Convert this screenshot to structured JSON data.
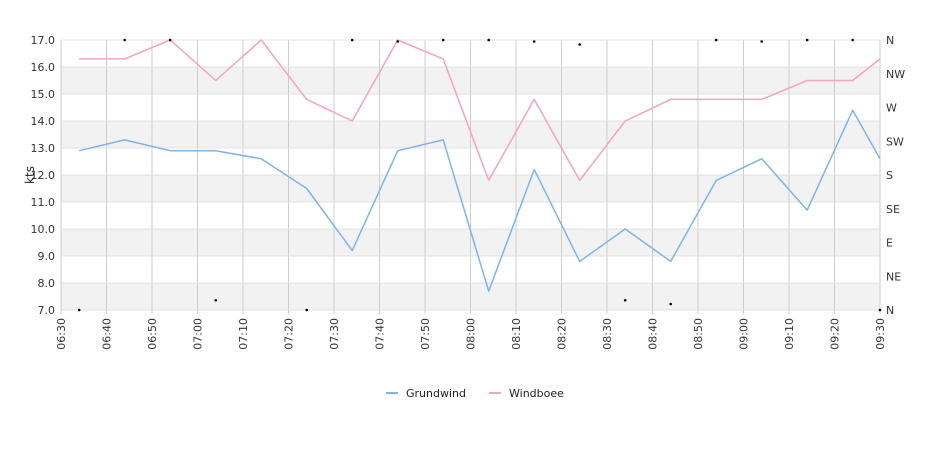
{
  "chart_data": {
    "type": "line",
    "ylabel": "kts",
    "ylim": [
      7.0,
      17.0
    ],
    "y_ticks": [
      "7.0",
      "8.0",
      "9.0",
      "10.0",
      "11.0",
      "12.0",
      "13.0",
      "14.0",
      "15.0",
      "16.0",
      "17.0"
    ],
    "x_ticks": [
      "06:30",
      "06:40",
      "06:50",
      "07:00",
      "07:10",
      "07:20",
      "07:30",
      "07:40",
      "07:50",
      "08:00",
      "08:10",
      "08:20",
      "08:30",
      "08:40",
      "08:50",
      "09:00",
      "09:10",
      "09:20",
      "09:30"
    ],
    "right_axis": {
      "labels": [
        "N",
        "NE",
        "E",
        "SE",
        "S",
        "SW",
        "W",
        "NW",
        "N"
      ],
      "range_deg": [
        0,
        360
      ]
    },
    "x": [
      "06:34",
      "06:44",
      "06:54",
      "07:04",
      "07:14",
      "07:24",
      "07:34",
      "07:44",
      "07:54",
      "08:04",
      "08:14",
      "08:24",
      "08:34",
      "08:44",
      "08:54",
      "09:04",
      "09:14",
      "09:24",
      "09:30"
    ],
    "series": [
      {
        "name": "Grundwind",
        "color": "#7cb5ec",
        "values": [
          12.9,
          13.3,
          12.9,
          12.9,
          12.6,
          11.5,
          9.2,
          12.9,
          13.3,
          7.7,
          12.2,
          8.8,
          10.0,
          8.8,
          11.8,
          12.6,
          10.7,
          14.4,
          12.6
        ]
      },
      {
        "name": "Windboee",
        "color": "#f7a1c4",
        "values": [
          16.3,
          16.3,
          17.0,
          15.5,
          17.0,
          14.8,
          14.0,
          17.0,
          16.3,
          11.8,
          14.8,
          11.8,
          14.0,
          14.8,
          14.8,
          14.8,
          15.5,
          15.5,
          16.3
        ]
      }
    ],
    "direction_points": [
      {
        "x": "06:34",
        "deg": 0
      },
      {
        "x": "06:44",
        "deg": 360
      },
      {
        "x": "06:54",
        "deg": 360
      },
      {
        "x": "07:04",
        "deg": 13
      },
      {
        "x": "07:24",
        "deg": 0
      },
      {
        "x": "07:34",
        "deg": 360
      },
      {
        "x": "07:44",
        "deg": 358
      },
      {
        "x": "07:54",
        "deg": 360
      },
      {
        "x": "08:04",
        "deg": 360
      },
      {
        "x": "08:14",
        "deg": 358
      },
      {
        "x": "08:24",
        "deg": 354
      },
      {
        "x": "08:34",
        "deg": 13
      },
      {
        "x": "08:44",
        "deg": 8
      },
      {
        "x": "08:54",
        "deg": 360
      },
      {
        "x": "09:04",
        "deg": 358
      },
      {
        "x": "09:14",
        "deg": 360
      },
      {
        "x": "09:24",
        "deg": 360
      },
      {
        "x": "09:30",
        "deg": 0
      }
    ],
    "grid": true,
    "legend_position": "bottom-center"
  }
}
